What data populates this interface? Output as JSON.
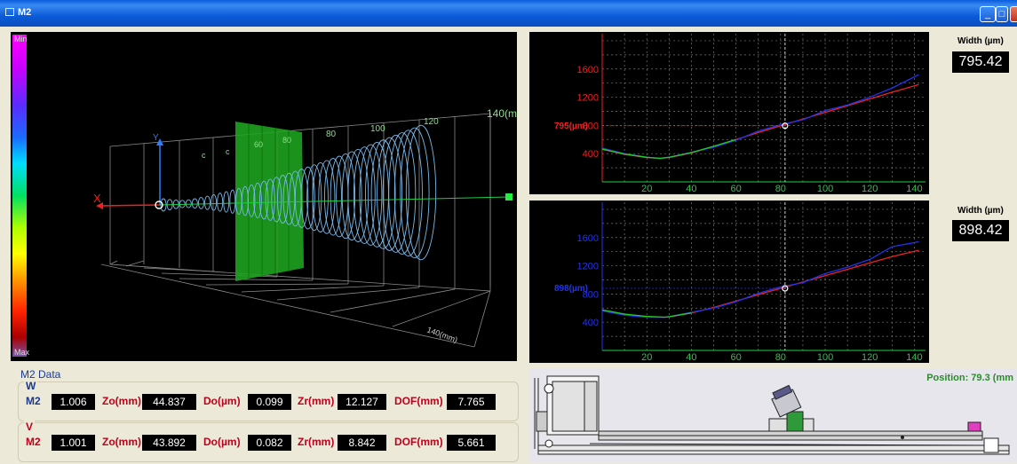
{
  "window": {
    "title": "M2"
  },
  "colorbar": {
    "min_label": "Min",
    "max_label": "Max"
  },
  "view3d": {
    "x_axis_label": "X",
    "y_axis_label": "Y",
    "ticks": [
      "80",
      "100",
      "120",
      "140(m"
    ],
    "bottom_axis_label": "140(mm)"
  },
  "m2": {
    "title": "M2 Data",
    "w": {
      "group_label": "W",
      "m2_label": "M2",
      "m2": "1.006",
      "zo_label": "Zo(mm)",
      "zo": "44.837",
      "do_label": "Do(µm)",
      "do": "0.099",
      "zr_label": "Zr(mm)",
      "zr": "12.127",
      "dof_label": "DOF(mm)",
      "dof": "7.765"
    },
    "v": {
      "group_label": "V",
      "m2_label": "M2",
      "m2": "1.001",
      "zo_label": "Zo(mm)",
      "zo": "43.892",
      "do_label": "Do(µm)",
      "do": "0.082",
      "zr_label": "Zr(mm)",
      "zr": "8.842",
      "dof_label": "DOF(mm)",
      "dof": "5.661"
    }
  },
  "charts": {
    "top": {
      "width_label": "Width (µm)",
      "width_value": "795.42",
      "cursor_label": "795(µm)"
    },
    "bottom": {
      "width_label": "Width (µm)",
      "width_value": "898.42",
      "cursor_label": "898(µm)"
    }
  },
  "stage": {
    "position": "Position: 79.3 (mm"
  },
  "chart_data": [
    {
      "type": "line",
      "title": "",
      "x_ticks": [
        "20",
        "40",
        "60",
        "80",
        "100",
        "120",
        "140"
      ],
      "y_ticks": [
        "400",
        "800",
        "1200",
        "1600"
      ],
      "xlim": [
        0,
        145
      ],
      "ylim": [
        0,
        2100
      ],
      "cursor_x": 82,
      "series": [
        {
          "color": "#ee2222",
          "x": [
            0,
            10,
            20,
            26,
            30,
            40,
            50,
            60,
            70,
            80,
            90,
            100,
            110,
            120,
            130,
            142
          ],
          "y": [
            460,
            390,
            345,
            335,
            345,
            410,
            500,
            600,
            700,
            795,
            890,
            985,
            1080,
            1175,
            1270,
            1380
          ]
        },
        {
          "color": "#2233ee",
          "x": [
            0,
            10,
            20,
            26,
            30,
            40,
            50,
            60,
            70,
            80,
            90,
            100,
            110,
            120,
            130,
            142
          ],
          "y": [
            480,
            400,
            350,
            330,
            350,
            420,
            490,
            590,
            720,
            810,
            880,
            1010,
            1090,
            1200,
            1330,
            1520
          ]
        },
        {
          "color": "#22cc22",
          "x": [
            0,
            10,
            20,
            26,
            30,
            40,
            50,
            60
          ],
          "y": [
            465,
            395,
            348,
            333,
            348,
            415,
            505,
            600
          ]
        }
      ]
    },
    {
      "type": "line",
      "title": "",
      "x_ticks": [
        "20",
        "40",
        "60",
        "80",
        "100",
        "120",
        "140"
      ],
      "y_ticks": [
        "400",
        "800",
        "1200",
        "1600"
      ],
      "xlim": [
        0,
        145
      ],
      "ylim": [
        0,
        2100
      ],
      "cursor_x": 82,
      "series": [
        {
          "color": "#ee2222",
          "x": [
            0,
            10,
            20,
            28,
            30,
            40,
            50,
            60,
            70,
            80,
            90,
            100,
            110,
            120,
            130,
            142
          ],
          "y": [
            570,
            510,
            480,
            470,
            475,
            530,
            610,
            700,
            790,
            880,
            970,
            1060,
            1150,
            1240,
            1330,
            1420
          ]
        },
        {
          "color": "#2233ee",
          "x": [
            0,
            10,
            20,
            28,
            30,
            40,
            50,
            60,
            70,
            80,
            90,
            100,
            110,
            120,
            130,
            142
          ],
          "y": [
            560,
            500,
            470,
            470,
            480,
            540,
            600,
            690,
            810,
            900,
            960,
            1090,
            1180,
            1290,
            1470,
            1540
          ]
        },
        {
          "color": "#22cc22",
          "x": [
            0,
            10,
            20,
            28,
            30,
            40
          ],
          "y": [
            575,
            515,
            483,
            472,
            478,
            532
          ]
        }
      ]
    }
  ]
}
